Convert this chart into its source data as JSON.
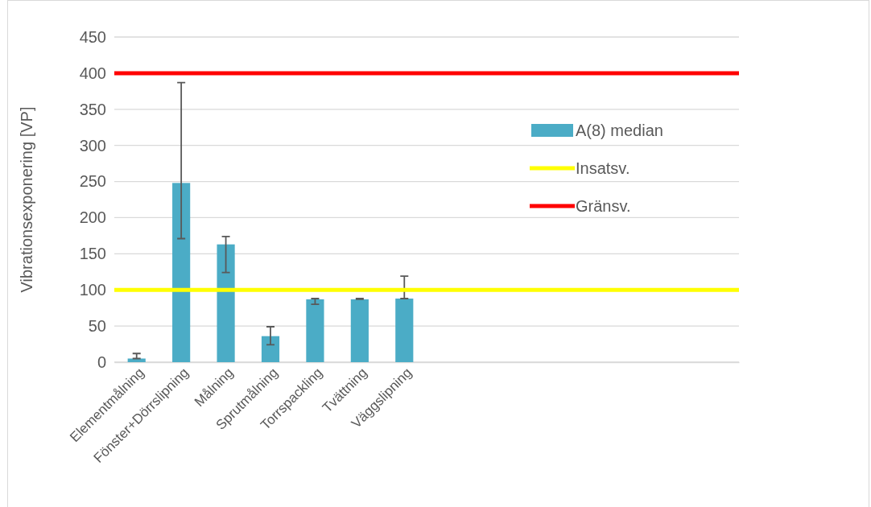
{
  "chart_data": {
    "type": "bar",
    "ylabel": "Vibrationsexponering [VP]",
    "categories": [
      "Elementmålning",
      "Fönster+Dörrslipning",
      "Målning",
      "Sprutmålning",
      "Torrspackling",
      "Tvättning",
      "Väggslipning",
      null,
      null,
      null,
      null,
      null,
      null,
      null
    ],
    "series": [
      {
        "name": "A(8) median",
        "color": "#4bacc6",
        "values": [
          5,
          248,
          163,
          36,
          87,
          87,
          88,
          null,
          null,
          null,
          null,
          null,
          null,
          null
        ],
        "errors": [
          [
            5,
            12
          ],
          [
            171,
            387
          ],
          [
            124,
            174
          ],
          [
            24,
            49
          ],
          [
            80,
            88
          ],
          [
            87,
            88
          ],
          [
            88,
            119
          ],
          null,
          null,
          null,
          null,
          null,
          null,
          null
        ]
      }
    ],
    "ylim": [
      0,
      450
    ],
    "yticks": [
      0,
      50,
      100,
      150,
      200,
      250,
      300,
      350,
      400,
      450
    ],
    "grid": "y",
    "legend": "right",
    "ref_lines": [
      {
        "axis": "y",
        "value": 100,
        "label": "Insatsv.",
        "color": "#ffff00"
      },
      {
        "axis": "y",
        "value": 400,
        "label": "Gränsv.",
        "color": "#ff0000"
      }
    ]
  }
}
